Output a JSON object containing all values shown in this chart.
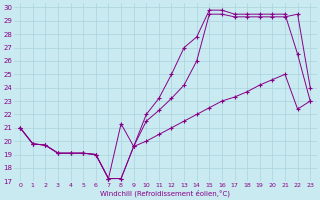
{
  "xlabel": "Windchill (Refroidissement éolien,°C)",
  "bg_color": "#c8eaf0",
  "grid_color": "#aad4dc",
  "line_color": "#880088",
  "xlim": [
    -0.5,
    23.5
  ],
  "ylim": [
    17,
    30.3
  ],
  "xticks": [
    0,
    1,
    2,
    3,
    4,
    5,
    6,
    7,
    8,
    9,
    10,
    11,
    12,
    13,
    14,
    15,
    16,
    17,
    18,
    19,
    20,
    21,
    22,
    23
  ],
  "yticks": [
    17,
    18,
    19,
    20,
    21,
    22,
    23,
    24,
    25,
    26,
    27,
    28,
    29,
    30
  ],
  "series1_x": [
    0,
    1,
    2,
    3,
    4,
    5,
    6,
    7,
    8,
    9,
    10,
    11,
    12,
    13,
    14,
    15,
    16,
    17,
    18,
    19,
    20,
    21,
    22,
    23
  ],
  "series1_y": [
    21.0,
    19.8,
    19.7,
    19.1,
    19.1,
    19.1,
    19.0,
    17.2,
    17.2,
    19.6,
    20.0,
    20.5,
    21.0,
    21.5,
    22.0,
    22.5,
    23.0,
    23.3,
    23.7,
    24.2,
    24.6,
    25.0,
    22.4,
    23.0
  ],
  "series2_x": [
    0,
    1,
    2,
    3,
    4,
    5,
    6,
    7,
    8,
    9,
    10,
    11,
    12,
    13,
    14,
    15,
    16,
    17,
    18,
    19,
    20,
    21,
    22,
    23
  ],
  "series2_y": [
    21.0,
    19.8,
    19.7,
    19.1,
    19.1,
    19.1,
    19.0,
    17.2,
    17.2,
    19.6,
    21.5,
    22.3,
    23.2,
    24.2,
    26.0,
    29.5,
    29.5,
    29.3,
    29.3,
    29.3,
    29.3,
    29.3,
    29.5,
    24.0
  ],
  "series3_x": [
    0,
    1,
    2,
    3,
    4,
    5,
    6,
    7,
    8,
    9,
    10,
    11,
    12,
    13,
    14,
    15,
    16,
    17,
    18,
    19,
    20,
    21,
    22,
    23
  ],
  "series3_y": [
    21.0,
    19.8,
    19.7,
    19.1,
    19.1,
    19.1,
    19.0,
    17.2,
    21.3,
    19.6,
    22.0,
    23.2,
    25.0,
    27.0,
    27.8,
    29.8,
    29.8,
    29.5,
    29.5,
    29.5,
    29.5,
    29.5,
    26.5,
    23.0
  ]
}
